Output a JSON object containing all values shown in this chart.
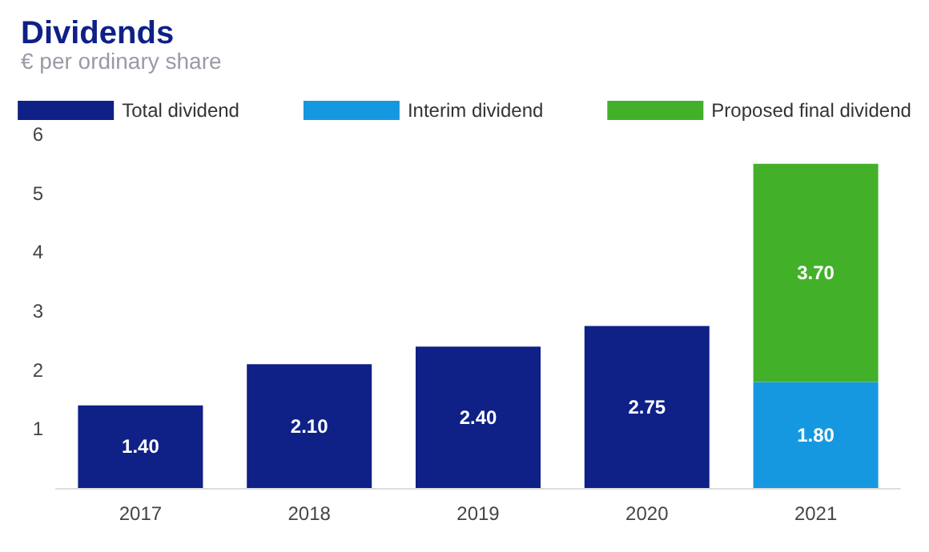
{
  "chart_data": {
    "type": "bar",
    "title": "Dividends",
    "subtitle": "€ per ordinary share",
    "categories": [
      "2017",
      "2018",
      "2019",
      "2020",
      "2021"
    ],
    "series": [
      {
        "name": "Total dividend",
        "color": "#0f2087",
        "values": [
          1.4,
          2.1,
          2.4,
          2.75,
          null
        ],
        "value_labels": [
          "1.40",
          "2.10",
          "2.40",
          "2.75",
          null
        ]
      },
      {
        "name": "Interim dividend",
        "color": "#1598e0",
        "values": [
          null,
          null,
          null,
          null,
          1.8
        ],
        "value_labels": [
          null,
          null,
          null,
          null,
          "1.80"
        ]
      },
      {
        "name": "Proposed final dividend",
        "color": "#43b02a",
        "values": [
          null,
          null,
          null,
          null,
          3.7
        ],
        "value_labels": [
          null,
          null,
          null,
          null,
          "3.70"
        ]
      }
    ],
    "stacked": true,
    "ylim": [
      0,
      6
    ],
    "yticks": [
      1,
      2,
      3,
      4,
      5,
      6
    ],
    "grid": false,
    "legend": "top"
  }
}
